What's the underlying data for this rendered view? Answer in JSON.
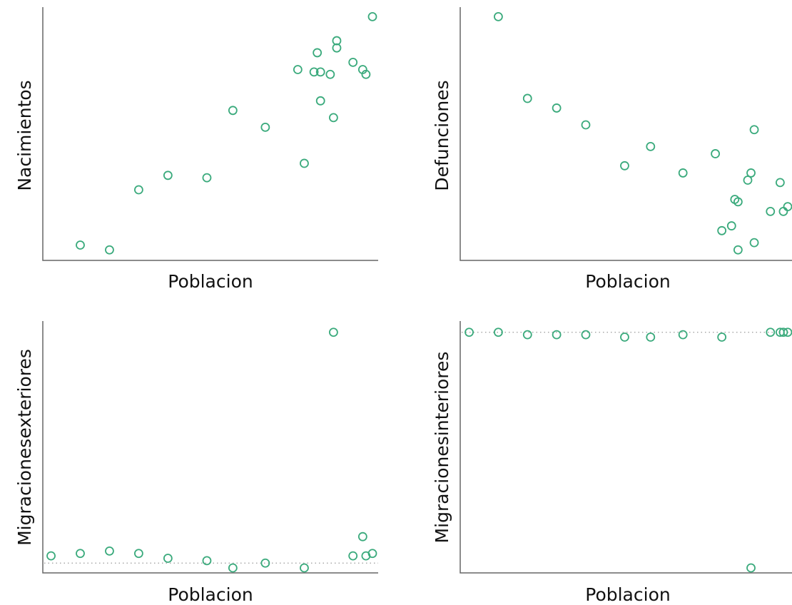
{
  "colors": {
    "point": "#3aaa7c",
    "axis": "#666666",
    "reference": "#999999"
  },
  "chart_data": [
    {
      "type": "scatter",
      "xlabel": "Poblacion",
      "ylabel": "Nacimientos",
      "grid": false,
      "xlim": [
        0,
        100
      ],
      "ylim": [
        0,
        100
      ],
      "points": [
        {
          "x": 10,
          "y": 4
        },
        {
          "x": 19,
          "y": 2
        },
        {
          "x": 28,
          "y": 27
        },
        {
          "x": 37,
          "y": 33
        },
        {
          "x": 49,
          "y": 32
        },
        {
          "x": 57,
          "y": 60
        },
        {
          "x": 67,
          "y": 53
        },
        {
          "x": 77,
          "y": 77
        },
        {
          "x": 79,
          "y": 38
        },
        {
          "x": 82,
          "y": 76
        },
        {
          "x": 83,
          "y": 84
        },
        {
          "x": 84,
          "y": 76
        },
        {
          "x": 84,
          "y": 64
        },
        {
          "x": 87,
          "y": 75
        },
        {
          "x": 88,
          "y": 57
        },
        {
          "x": 89,
          "y": 89
        },
        {
          "x": 89,
          "y": 86
        },
        {
          "x": 94,
          "y": 80
        },
        {
          "x": 97,
          "y": 77
        },
        {
          "x": 98,
          "y": 75
        },
        {
          "x": 100,
          "y": 99
        }
      ]
    },
    {
      "type": "scatter",
      "xlabel": "Poblacion",
      "ylabel": "Defunciones",
      "grid": false,
      "xlim": [
        0,
        100
      ],
      "ylim": [
        0,
        100
      ],
      "points": [
        {
          "x": 10,
          "y": 99
        },
        {
          "x": 19,
          "y": 65
        },
        {
          "x": 28,
          "y": 61
        },
        {
          "x": 37,
          "y": 54
        },
        {
          "x": 49,
          "y": 37
        },
        {
          "x": 57,
          "y": 45
        },
        {
          "x": 67,
          "y": 34
        },
        {
          "x": 77,
          "y": 42
        },
        {
          "x": 79,
          "y": 10
        },
        {
          "x": 82,
          "y": 12
        },
        {
          "x": 83,
          "y": 23
        },
        {
          "x": 84,
          "y": 22
        },
        {
          "x": 84,
          "y": 2
        },
        {
          "x": 87,
          "y": 31
        },
        {
          "x": 88,
          "y": 34
        },
        {
          "x": 89,
          "y": 52
        },
        {
          "x": 89,
          "y": 5
        },
        {
          "x": 94,
          "y": 18
        },
        {
          "x": 97,
          "y": 30
        },
        {
          "x": 98,
          "y": 18
        },
        {
          "x": 100,
          "y": 20
        }
      ]
    },
    {
      "type": "scatter",
      "xlabel": "Poblacion",
      "ylabel": "Migracionesexteriores",
      "grid": false,
      "xlim": [
        0,
        100
      ],
      "ylim": [
        0,
        100
      ],
      "reference_y": 2,
      "points": [
        {
          "x": 1,
          "y": 5
        },
        {
          "x": 10,
          "y": 6
        },
        {
          "x": 19,
          "y": 7
        },
        {
          "x": 28,
          "y": 6
        },
        {
          "x": 37,
          "y": 4
        },
        {
          "x": 49,
          "y": 3
        },
        {
          "x": 57,
          "y": 0
        },
        {
          "x": 67,
          "y": 2
        },
        {
          "x": 79,
          "y": 0
        },
        {
          "x": 88,
          "y": 98
        },
        {
          "x": 94,
          "y": 5
        },
        {
          "x": 97,
          "y": 13
        },
        {
          "x": 98,
          "y": 5
        },
        {
          "x": 100,
          "y": 6
        }
      ]
    },
    {
      "type": "scatter",
      "xlabel": "Poblacion",
      "ylabel": "Migracionesinteriores",
      "grid": false,
      "xlim": [
        0,
        100
      ],
      "ylim": [
        0,
        100
      ],
      "reference_y": 98,
      "points": [
        {
          "x": 1,
          "y": 98
        },
        {
          "x": 10,
          "y": 98
        },
        {
          "x": 19,
          "y": 97
        },
        {
          "x": 28,
          "y": 97
        },
        {
          "x": 37,
          "y": 97
        },
        {
          "x": 49,
          "y": 96
        },
        {
          "x": 57,
          "y": 96
        },
        {
          "x": 67,
          "y": 97
        },
        {
          "x": 79,
          "y": 96
        },
        {
          "x": 88,
          "y": 0
        },
        {
          "x": 94,
          "y": 98
        },
        {
          "x": 97,
          "y": 98
        },
        {
          "x": 98,
          "y": 98
        },
        {
          "x": 100,
          "y": 98
        }
      ]
    }
  ]
}
